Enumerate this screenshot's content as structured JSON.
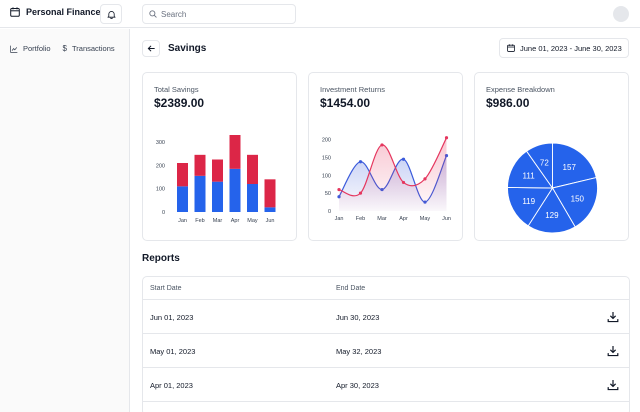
{
  "app": {
    "title": "Personal Finance"
  },
  "search": {
    "placeholder": "Search"
  },
  "sidebar": {
    "items": [
      {
        "label": "Portfolio",
        "icon": "chart-line-icon"
      },
      {
        "label": "Transactions",
        "icon": "dollar-icon"
      }
    ]
  },
  "page": {
    "title": "Savings",
    "date_range": "June 01, 2023 - June 30, 2023"
  },
  "cards": [
    {
      "label": "Total Savings",
      "value": "$2389.00"
    },
    {
      "label": "Investment Returns",
      "value": "$1454.00"
    },
    {
      "label": "Expense Breakdown",
      "value": "$986.00"
    }
  ],
  "chart_data": [
    {
      "type": "bar",
      "stacked": true,
      "categories": [
        "Jan",
        "Feb",
        "Mar",
        "Apr",
        "May",
        "Jun"
      ],
      "series": [
        {
          "values": [
            110,
            155,
            130,
            185,
            120,
            20
          ],
          "color": "#2563eb"
        },
        {
          "values": [
            100,
            90,
            95,
            145,
            125,
            120
          ],
          "color": "#dc2647"
        }
      ],
      "yticks": [
        0,
        100,
        200,
        300
      ],
      "ylim": [
        0,
        330
      ]
    },
    {
      "type": "line",
      "categories": [
        "Jan",
        "Feb",
        "Mar",
        "Apr",
        "May",
        "Jun"
      ],
      "series": [
        {
          "values": [
            40,
            138,
            60,
            145,
            25,
            155
          ],
          "color": "#3b5bdb"
        },
        {
          "values": [
            60,
            50,
            185,
            80,
            90,
            205
          ],
          "color": "#e5365e"
        }
      ],
      "yticks": [
        0,
        50,
        100,
        150,
        200
      ],
      "ylim": [
        0,
        210
      ]
    },
    {
      "type": "pie",
      "values": [
        157,
        150,
        129,
        119,
        111,
        72
      ],
      "color": "#2563eb"
    }
  ],
  "reports": {
    "title": "Reports",
    "columns": [
      "Start Date",
      "End Date"
    ],
    "rows": [
      {
        "start": "Jun 01, 2023",
        "end": "Jun 30, 2023"
      },
      {
        "start": "May 01, 2023",
        "end": "May 32, 2023"
      },
      {
        "start": "Apr 01, 2023",
        "end": "Apr 30, 2023"
      }
    ]
  },
  "icons": {
    "brand": "calendar-icon",
    "notifications": "bell-icon",
    "search": "search-icon",
    "back": "arrow-left-icon",
    "date": "calendar-icon",
    "download": "download-icon"
  }
}
